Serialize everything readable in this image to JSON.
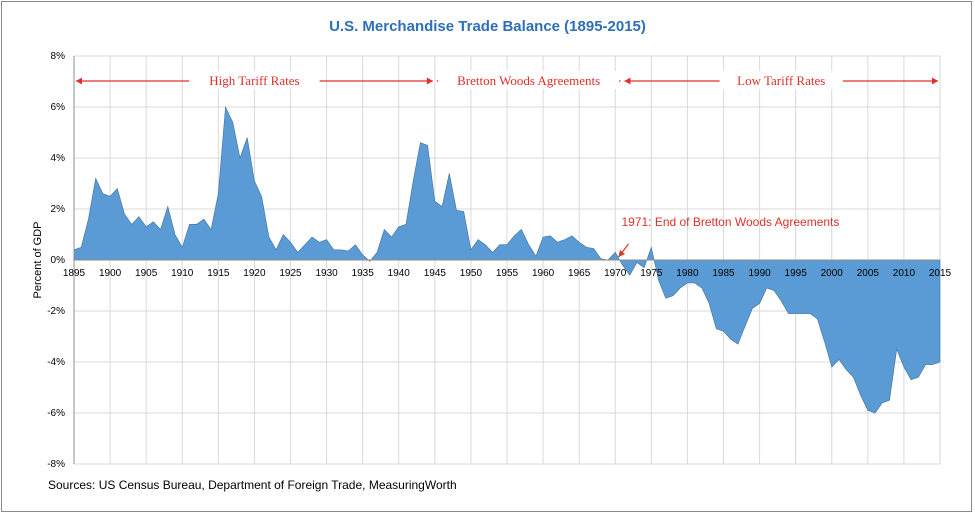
{
  "chart_data": {
    "type": "area",
    "title": "U.S. Merchandise Trade Balance (1895-2015)",
    "ylabel": "Percent of GDP",
    "xlabel": "",
    "xlim": [
      1895,
      2015
    ],
    "ylim": [
      -8,
      8
    ],
    "grid": true,
    "x_ticks": [
      "1895",
      "1900",
      "1905",
      "1910",
      "1915",
      "1920",
      "1925",
      "1930",
      "1935",
      "1940",
      "1945",
      "1950",
      "1955",
      "1960",
      "1965",
      "1970",
      "1975",
      "1980",
      "1985",
      "1990",
      "1995",
      "2000",
      "2005",
      "2010",
      "2015"
    ],
    "y_ticks": [
      "8%",
      "6%",
      "4%",
      "2%",
      "0%",
      "-2%",
      "-4%",
      "-6%",
      "-8%"
    ],
    "color": "#5b9bd5",
    "series": [
      {
        "x": [
          1895,
          1896,
          1897,
          1898,
          1899,
          1900,
          1901,
          1902,
          1903,
          1904,
          1905,
          1906,
          1907,
          1908,
          1909,
          1910,
          1911,
          1912,
          1913,
          1914,
          1915,
          1916,
          1917,
          1918,
          1919,
          1920,
          1921,
          1922,
          1923,
          1924,
          1925,
          1926,
          1927,
          1928,
          1929,
          1930,
          1931,
          1932,
          1933,
          1934,
          1935,
          1936,
          1937,
          1938,
          1939,
          1940,
          1941,
          1942,
          1943,
          1944,
          1945,
          1946,
          1947,
          1948,
          1949,
          1950,
          1951,
          1952,
          1953,
          1954,
          1955,
          1956,
          1957,
          1958,
          1959,
          1960,
          1961,
          1962,
          1963,
          1964,
          1965,
          1966,
          1967,
          1968,
          1969,
          1970,
          1971,
          1972,
          1973,
          1974,
          1975,
          1976,
          1977,
          1978,
          1979,
          1980,
          1981,
          1982,
          1983,
          1984,
          1985,
          1986,
          1987,
          1988,
          1989,
          1990,
          1991,
          1992,
          1993,
          1994,
          1995,
          1996,
          1997,
          1998,
          1999,
          2000,
          2001,
          2002,
          2003,
          2004,
          2005,
          2006,
          2007,
          2008,
          2009,
          2010,
          2011,
          2012,
          2013,
          2014,
          2015
        ],
        "values": [
          0.4,
          0.5,
          1.6,
          3.2,
          2.6,
          2.5,
          2.8,
          1.8,
          1.4,
          1.7,
          1.3,
          1.5,
          1.2,
          2.1,
          1.0,
          0.5,
          1.4,
          1.4,
          1.6,
          1.2,
          2.6,
          6.0,
          5.4,
          4.0,
          4.8,
          3.1,
          2.5,
          0.9,
          0.4,
          1.0,
          0.7,
          0.3,
          0.6,
          0.9,
          0.7,
          0.8,
          0.4,
          0.4,
          0.35,
          0.6,
          0.2,
          -0.05,
          0.3,
          1.2,
          0.9,
          1.3,
          1.4,
          3.1,
          4.6,
          4.5,
          2.3,
          2.1,
          3.4,
          1.95,
          1.9,
          0.4,
          0.8,
          0.6,
          0.3,
          0.6,
          0.6,
          0.95,
          1.2,
          0.6,
          0.15,
          0.9,
          0.95,
          0.7,
          0.8,
          0.95,
          0.7,
          0.5,
          0.45,
          0.05,
          0.0,
          0.3,
          -0.2,
          -0.6,
          -0.1,
          -0.3,
          0.5,
          -0.8,
          -1.5,
          -1.4,
          -1.1,
          -0.9,
          -0.9,
          -1.1,
          -1.7,
          -2.7,
          -2.8,
          -3.1,
          -3.3,
          -2.6,
          -1.9,
          -1.7,
          -1.1,
          -1.2,
          -1.6,
          -2.1,
          -2.1,
          -2.1,
          -2.1,
          -2.3,
          -3.2,
          -4.2,
          -3.9,
          -4.3,
          -4.6,
          -5.3,
          -5.9,
          -6.0,
          -5.6,
          -5.5,
          -3.5,
          -4.2,
          -4.7,
          -4.6,
          -4.1,
          -4.1,
          -4.0
        ]
      }
    ],
    "periods": [
      {
        "label": "High Tariff Rates",
        "from": 1895,
        "to": 1945
      },
      {
        "label": "Bretton Woods Agreements",
        "from": 1945,
        "to": 1971
      },
      {
        "label": "Low Tariff Rates",
        "from": 1971,
        "to": 2015
      }
    ],
    "annotation": {
      "text": "1971: End of Bretton Woods Agreements",
      "x": 1971,
      "y": 0
    }
  },
  "source": "Sources: US Census Bureau, Department of Foreign Trade, MeasuringWorth"
}
